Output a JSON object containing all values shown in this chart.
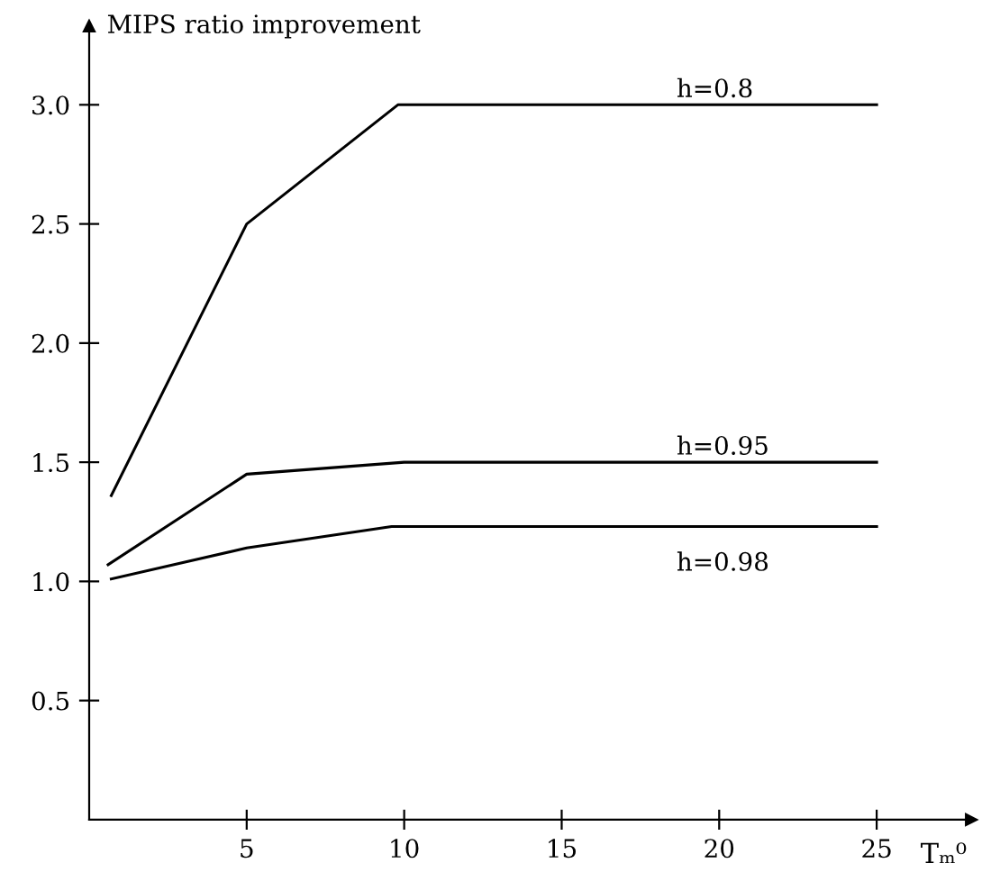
{
  "chart_data": {
    "type": "line",
    "xlabel": "Tₘ⁰",
    "ylabel": "MIPS ratio improvement",
    "xlim": [
      0,
      28
    ],
    "ylim": [
      0,
      3.33
    ],
    "xticks": [
      5,
      10,
      15,
      20,
      25
    ],
    "yticks": [
      0.5,
      {
        "value": 1,
        "label": "1.0"
      },
      1.5,
      {
        "value": 2,
        "label": "2.0"
      },
      2.5,
      {
        "value": 3,
        "label": "3.0"
      }
    ],
    "grid": false,
    "legend": false,
    "marker": "none",
    "line_style": "solid",
    "series": [
      {
        "name": "h=0.8",
        "color": "#000000",
        "x": [
          0.7,
          5,
          9.8,
          25
        ],
        "values": [
          1.36,
          2.5,
          3.0,
          3.0
        ]
      },
      {
        "name": "h=0.95",
        "color": "#000000",
        "x": [
          0.6,
          5,
          10,
          25
        ],
        "values": [
          1.07,
          1.45,
          1.5,
          1.5
        ]
      },
      {
        "name": "h=0.98",
        "color": "#000000",
        "x": [
          0.7,
          5,
          9.6,
          25
        ],
        "values": [
          1.01,
          1.14,
          1.23,
          1.23
        ]
      }
    ]
  }
}
